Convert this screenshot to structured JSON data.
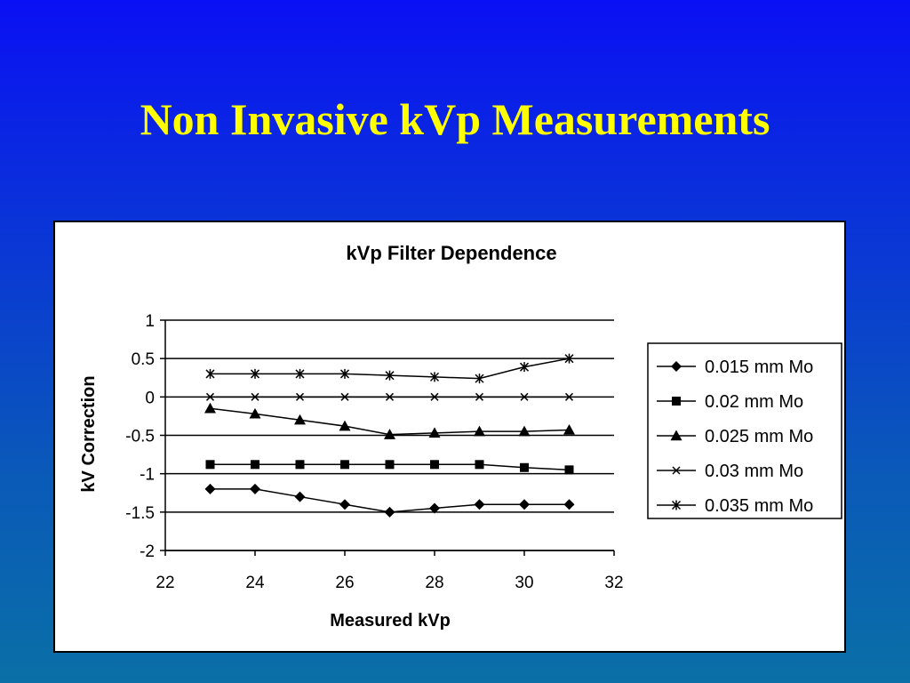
{
  "slide": {
    "title": "Non Invasive kVp Measurements"
  },
  "chart_data": {
    "type": "line",
    "title": "kVp Filter Dependence",
    "xlabel": "Measured kVp",
    "ylabel": "kV Correction",
    "xlim": [
      22,
      32
    ],
    "ylim": [
      -2,
      1
    ],
    "xticks": [
      22,
      24,
      26,
      28,
      30,
      32
    ],
    "yticks": [
      1,
      0.5,
      0,
      -0.5,
      -1,
      -1.5,
      -2
    ],
    "grid": "horizontal",
    "legend_position": "right",
    "line_color": "#000000",
    "series": [
      {
        "name": "0.015 mm Mo",
        "marker": "diamond",
        "x": [
          23,
          24,
          25,
          26,
          27,
          28,
          29,
          30,
          31
        ],
        "y": [
          -1.2,
          -1.2,
          -1.3,
          -1.4,
          -1.5,
          -1.45,
          -1.4,
          -1.4,
          -1.4
        ]
      },
      {
        "name": "0.02 mm Mo",
        "marker": "square",
        "x": [
          23,
          24,
          25,
          26,
          27,
          28,
          29,
          30,
          31
        ],
        "y": [
          -0.88,
          -0.88,
          -0.88,
          -0.88,
          -0.88,
          -0.88,
          -0.88,
          -0.92,
          -0.95
        ]
      },
      {
        "name": "0.025 mm Mo",
        "marker": "triangle",
        "x": [
          23,
          24,
          25,
          26,
          27,
          28,
          29,
          30,
          31
        ],
        "y": [
          -0.15,
          -0.22,
          -0.3,
          -0.38,
          -0.49,
          -0.47,
          -0.45,
          -0.45,
          -0.43
        ]
      },
      {
        "name": "0.03 mm Mo",
        "marker": "x",
        "x": [
          23,
          24,
          25,
          26,
          27,
          28,
          29,
          30,
          31
        ],
        "y": [
          0,
          0,
          0,
          0,
          0,
          0,
          0,
          0,
          0
        ]
      },
      {
        "name": "0.035 mm Mo",
        "marker": "star",
        "x": [
          23,
          24,
          25,
          26,
          27,
          28,
          29,
          30,
          31
        ],
        "y": [
          0.3,
          0.3,
          0.3,
          0.3,
          0.28,
          0.26,
          0.24,
          0.39,
          0.5
        ]
      }
    ]
  }
}
